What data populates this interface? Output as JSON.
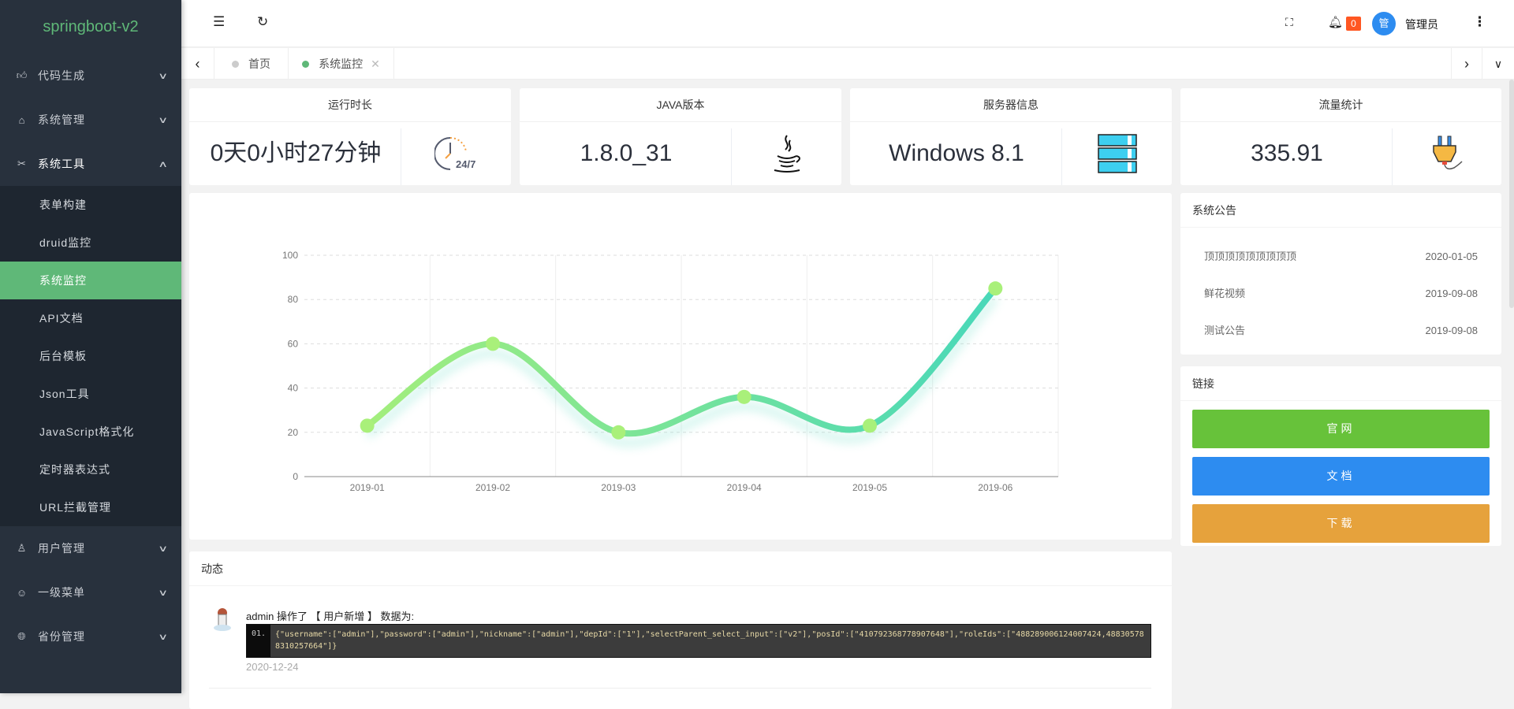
{
  "app": {
    "title": "springboot-v2"
  },
  "sidebar": {
    "menus_top": [
      {
        "label": "代码生成",
        "icon": "thumbs-up-icon"
      },
      {
        "label": "系统管理",
        "icon": "home-icon"
      },
      {
        "label": "系统工具",
        "icon": "tools-icon"
      }
    ],
    "submenu": [
      {
        "label": "表单构建"
      },
      {
        "label": "druid监控"
      },
      {
        "label": "系统监控",
        "active": true
      },
      {
        "label": "API文档"
      },
      {
        "label": "后台模板"
      },
      {
        "label": "Json工具"
      },
      {
        "label": "JavaScript格式化"
      },
      {
        "label": "定时器表达式"
      },
      {
        "label": "URL拦截管理"
      }
    ],
    "menus_bottom": [
      {
        "label": "用户管理",
        "icon": "user-icon"
      },
      {
        "label": "一级菜单",
        "icon": "smile-icon"
      },
      {
        "label": "省份管理",
        "icon": "globe-icon"
      }
    ]
  },
  "header": {
    "notification_count": "0",
    "avatar_text": "管",
    "username": "管理员"
  },
  "tabs": [
    {
      "label": "首页"
    },
    {
      "label": "系统监控",
      "active": true
    }
  ],
  "stats": [
    {
      "title": "运行时长",
      "value": "0天0小时27分钟",
      "icon": "clock-24-7-icon",
      "icon_text": "24/7"
    },
    {
      "title": "JAVA版本",
      "value": "1.8.0_31",
      "icon": "java-icon"
    },
    {
      "title": "服务器信息",
      "value": "Windows 8.1",
      "icon": "server-icon"
    },
    {
      "title": "流量统计",
      "value": "335.91",
      "icon": "plug-icon"
    }
  ],
  "chart_data": {
    "type": "line",
    "smooth": true,
    "categories": [
      "2019-01",
      "2019-02",
      "2019-03",
      "2019-04",
      "2019-05",
      "2019-06"
    ],
    "values": [
      23,
      60,
      20,
      36,
      23,
      85
    ],
    "ylim": [
      0,
      100
    ],
    "yticks": [
      0,
      20,
      40,
      60,
      80,
      100
    ],
    "grid": true,
    "colors": {
      "start": "#a3ee7c",
      "end": "#48d8b9",
      "point": "#a9f07a"
    }
  },
  "notices": {
    "title": "系统公告",
    "items": [
      {
        "title": "顶顶顶顶顶顶顶顶顶",
        "date": "2020-01-05"
      },
      {
        "title": "鲜花视频",
        "date": "2019-09-08"
      },
      {
        "title": "测试公告",
        "date": "2019-09-08"
      }
    ]
  },
  "links": {
    "title": "链接",
    "items": [
      {
        "label": "官网",
        "color": "#67c23a"
      },
      {
        "label": "文档",
        "color": "#2d8cf0"
      },
      {
        "label": "下载",
        "color": "#e6a23c"
      }
    ]
  },
  "activity": {
    "title": "动态",
    "items": [
      {
        "text": "admin 操作了 【 用户新增 】 数据为:",
        "line_no": "01.",
        "code": "{\"username\":[\"admin\"],\"password\":[\"admin\"],\"nickname\":[\"admin\"],\"depId\":[\"1\"],\"selectParent_select_input\":[\"v2\"],\"posId\":[\"410792368778907648\"],\"roleIds\":[\"488289006124007424,488305788310257664\"]}",
        "date": "2020-12-24"
      }
    ]
  }
}
